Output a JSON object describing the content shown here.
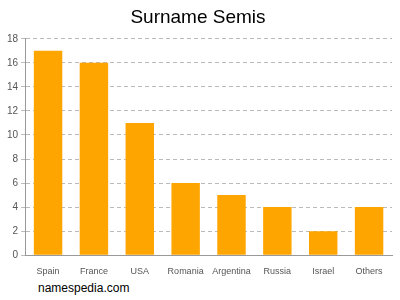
{
  "chart_data": {
    "type": "bar",
    "title": "Surname Semis",
    "categories": [
      "Spain",
      "France",
      "USA",
      "Romania",
      "Argentina",
      "Russia",
      "Israel",
      "Others"
    ],
    "values": [
      17,
      16,
      11,
      6,
      5,
      4,
      2,
      4
    ],
    "color": "#ffa500",
    "ylim": [
      0,
      18
    ],
    "yticks": [
      0,
      2,
      4,
      6,
      8,
      10,
      12,
      14,
      16,
      18
    ],
    "grid": true,
    "annotations": [
      "namespedia.com"
    ]
  }
}
